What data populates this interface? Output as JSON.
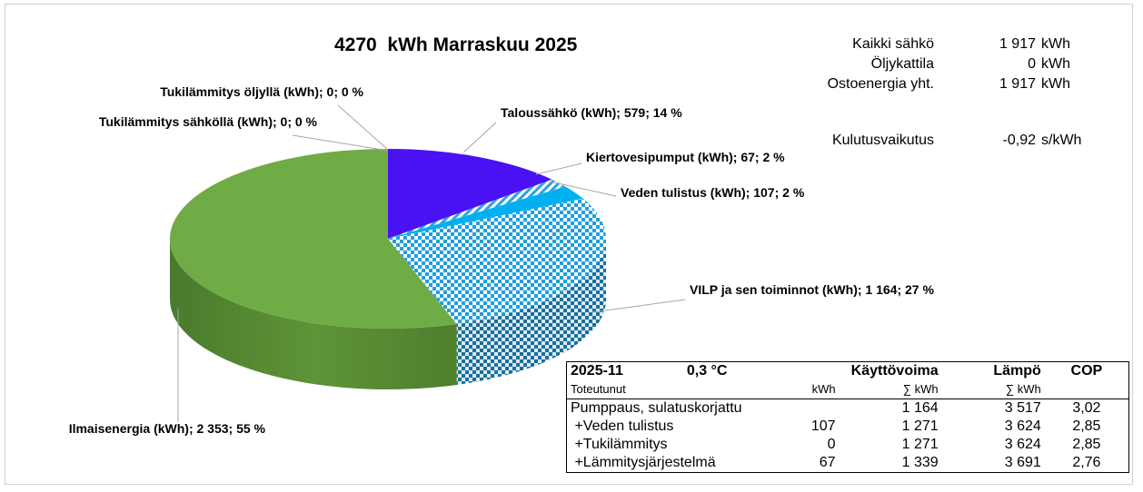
{
  "chart_data": {
    "type": "pie",
    "title": "4270  kWh Marraskuu 2025",
    "total_kwh": 4270,
    "slices": [
      {
        "name": "Taloussähkö",
        "value": 579,
        "percent": 14,
        "label": "Taloussähkö (kWh); 579; 14 %",
        "color": "#4a12f2",
        "pattern": "solid"
      },
      {
        "name": "Kiertovesipumput",
        "value": 67,
        "percent": 2,
        "label": "Kiertovesipumput (kWh); 67; 2 %",
        "color": "#2ca3e0",
        "pattern": "stripes"
      },
      {
        "name": "Veden tulistus",
        "value": 107,
        "percent": 2,
        "label": "Veden tulistus (kWh); 107; 2 %",
        "color": "#00b0f0",
        "pattern": "solid"
      },
      {
        "name": "VILP ja sen toiminnot",
        "value": 1164,
        "percent": 27,
        "label": "VILP ja sen toiminnot (kWh); 1 164; 27 %",
        "color": "#1e9fe0",
        "pattern": "checker"
      },
      {
        "name": "Ilmaisenergia",
        "value": 2353,
        "percent": 55,
        "label": "Ilmaisenergia (kWh); 2 353; 55 %",
        "color": "#6fac46",
        "pattern": "solid"
      },
      {
        "name": "Tukilämmitys sähköllä",
        "value": 0,
        "percent": 0,
        "label": "Tukilämmitys sähköllä (kWh); 0; 0 %",
        "color": "#ffffff",
        "pattern": "solid"
      },
      {
        "name": "Tukilämmitys öljyllä",
        "value": 0,
        "percent": 0,
        "label": "Tukilämmitys öljyllä (kWh); 0; 0 %",
        "color": "#ffffff",
        "pattern": "solid"
      }
    ]
  },
  "summary": {
    "rows": [
      {
        "label": "Kaikki sähkö",
        "value": "1 917",
        "unit": "kWh"
      },
      {
        "label": "Öljykattila",
        "value": "0",
        "unit": "kWh"
      },
      {
        "label": "Ostoenergia yht.",
        "value": "1 917",
        "unit": "kWh"
      }
    ],
    "kulutus": {
      "label": "Kulutusvaikutus",
      "value": "-0,92",
      "unit": "s/kWh"
    }
  },
  "cop_table": {
    "period": "2025-11",
    "temp": "0,3 °C",
    "col_kaytto": "Käyttövoima",
    "col_lampo": "Lämpö",
    "col_cop": "COP",
    "sub_label": "Toteutunut",
    "sub_kwh": "kWh",
    "sub_sum1": "∑ kWh",
    "sub_sum2": "∑ kWh",
    "rows": [
      {
        "label": "Pumppaus, sulatuskorjattu",
        "kwh": "",
        "sum": "1 164",
        "heat": "3 517",
        "cop": "3,02"
      },
      {
        "label": " +Veden tulistus",
        "kwh": "107",
        "sum": "1 271",
        "heat": "3 624",
        "cop": "2,85"
      },
      {
        "label": " +Tukilämmitys",
        "kwh": "0",
        "sum": "1 271",
        "heat": "3 624",
        "cop": "2,85"
      },
      {
        "label": " +Lämmitysjärjestelmä",
        "kwh": "67",
        "sum": "1 339",
        "heat": "3 691",
        "cop": "2,76"
      }
    ]
  }
}
